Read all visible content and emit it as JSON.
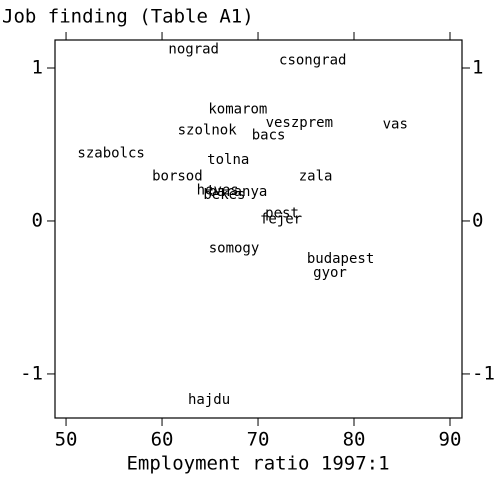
{
  "chart_data": {
    "type": "scatter",
    "title": "Job finding (Table A1)",
    "x_label": "Employment ratio 1997:1",
    "labels": [
      "nograd",
      "csongrad",
      "komarom",
      "veszprem",
      "vas",
      "szolnok",
      "bacs",
      "szabolcs",
      "tolna",
      "zala",
      "borsod",
      "heves",
      "baranya",
      "bekes",
      "pest",
      "fejer",
      "somogy",
      "budapest",
      "gyor",
      "hajdu"
    ],
    "x": [
      63.3,
      75.7,
      67.9,
      74.3,
      84.3,
      64.7,
      71.1,
      54.7,
      66.9,
      76.0,
      61.6,
      65.8,
      67.9,
      66.5,
      72.5,
      72.4,
      67.5,
      78.6,
      77.5,
      64.9
    ],
    "y": [
      1.12,
      1.05,
      0.73,
      0.64,
      0.63,
      0.59,
      0.56,
      0.44,
      0.4,
      0.29,
      0.29,
      0.2,
      0.19,
      0.17,
      0.05,
      0.01,
      -0.18,
      -0.25,
      -0.34,
      -1.17
    ],
    "xlim": [
      48.85,
      91.25
    ],
    "ylim": [
      -1.288,
      1.183
    ],
    "xticks": [
      50,
      60,
      70,
      80,
      90
    ],
    "yticks": [
      -1,
      0,
      1
    ]
  }
}
